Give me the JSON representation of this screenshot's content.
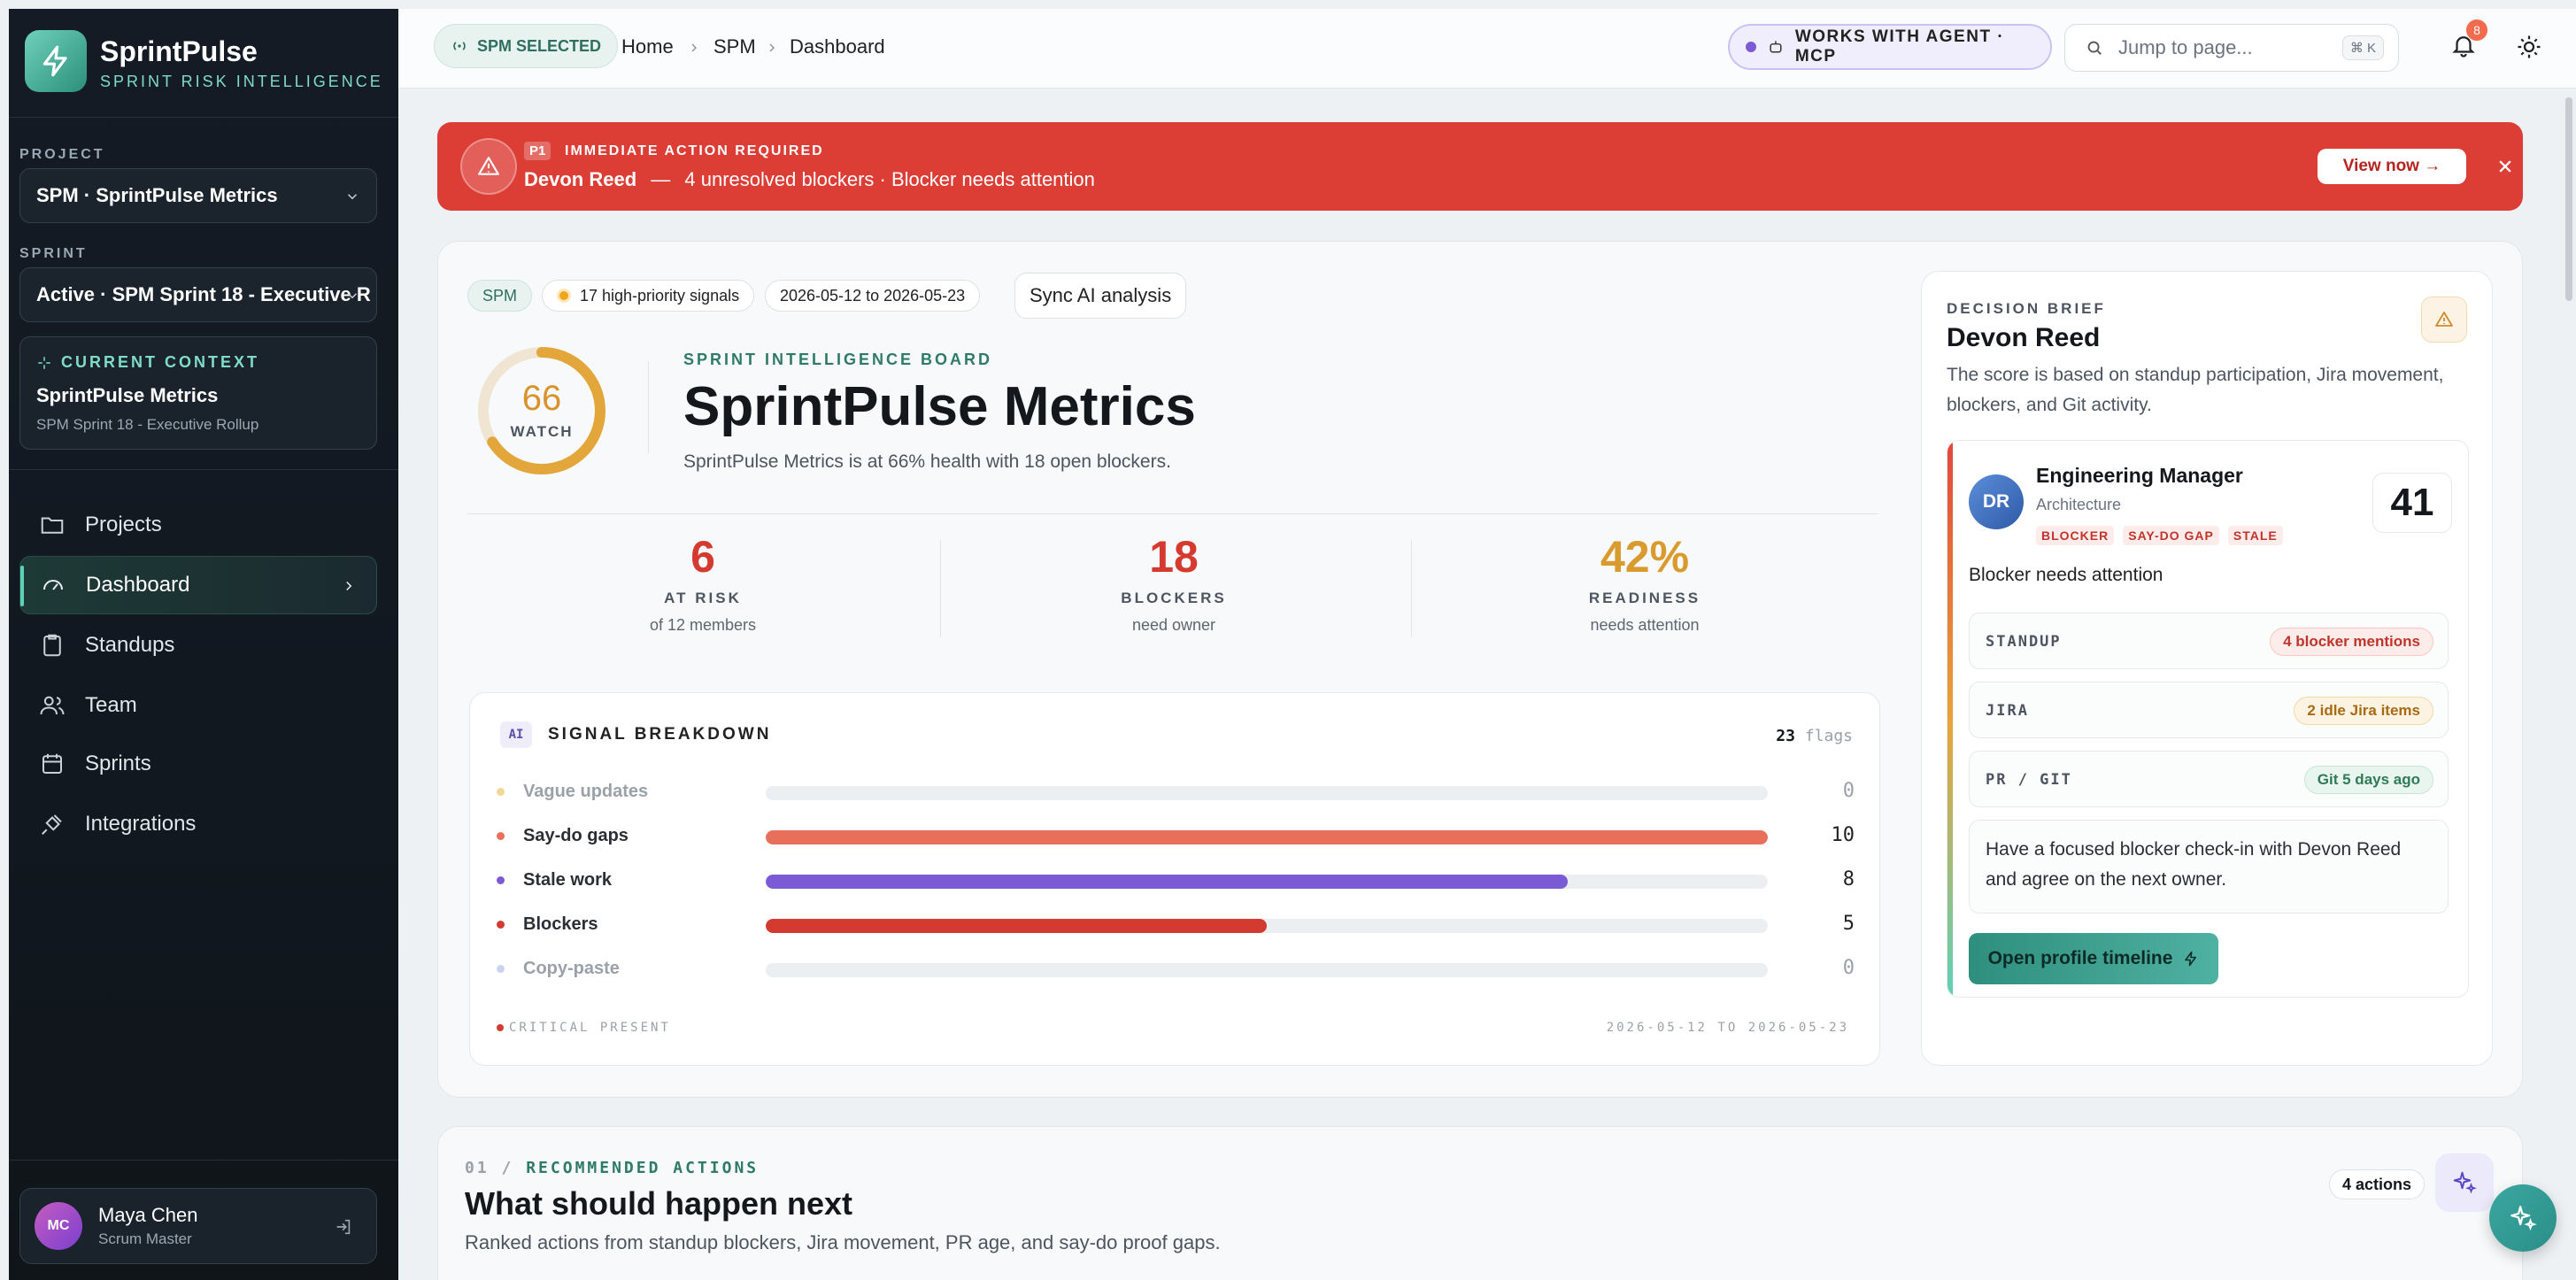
{
  "app": {
    "name": "SprintPulse",
    "tagline": "SPRINT RISK INTELLIGENCE"
  },
  "sidebar": {
    "project_label": "PROJECT",
    "project_value": "SPM · SprintPulse Metrics",
    "sprint_label": "SPRINT",
    "sprint_value": "Active · SPM Sprint 18 - Executive R",
    "context": {
      "label": "CURRENT CONTEXT",
      "title": "SprintPulse Metrics",
      "subtitle": "SPM Sprint 18 - Executive Rollup"
    },
    "nav": [
      {
        "label": "Projects",
        "icon": "folder-icon"
      },
      {
        "label": "Dashboard",
        "icon": "gauge-icon",
        "active": true
      },
      {
        "label": "Standups",
        "icon": "clipboard-icon"
      },
      {
        "label": "Team",
        "icon": "users-icon"
      },
      {
        "label": "Sprints",
        "icon": "calendar-icon"
      },
      {
        "label": "Integrations",
        "icon": "plug-icon"
      }
    ],
    "user": {
      "initials": "MC",
      "name": "Maya Chen",
      "role": "Scrum Master"
    }
  },
  "topbar": {
    "spm_pill": "SPM SELECTED",
    "breadcrumbs": [
      "Home",
      "SPM",
      "Dashboard"
    ],
    "agent_pill": "WORKS WITH AGENT · MCP",
    "search_placeholder": "Jump to page...",
    "search_shortcut": "⌘ K",
    "notifications_count": "8"
  },
  "alert": {
    "priority": "P1",
    "kicker": "IMMEDIATE ACTION REQUIRED",
    "person": "Devon Reed",
    "separator": "—",
    "message": "4 unresolved blockers · Blocker needs attention",
    "cta": "View now →"
  },
  "board": {
    "chips": {
      "project": "SPM",
      "signals": "17 high-priority signals",
      "dates": "2026-05-12 to 2026-05-23",
      "sync": "Sync AI analysis"
    },
    "score": {
      "value": "66",
      "label": "WATCH",
      "fraction": 0.66
    },
    "kicker": "SPRINT INTELLIGENCE BOARD",
    "title": "SprintPulse Metrics",
    "subtitle": "SprintPulse Metrics is at 66% health with 18 open blockers.",
    "stats": [
      {
        "value": "6",
        "label": "AT RISK",
        "sub": "of 12 members",
        "color": "#d43a2f"
      },
      {
        "value": "18",
        "label": "BLOCKERS",
        "sub": "need owner",
        "color": "#d43a2f"
      },
      {
        "value": "42%",
        "label": "READINESS",
        "sub": "needs attention",
        "color": "#d99a2e"
      }
    ]
  },
  "signals": {
    "ai_tag": "AI",
    "title": "SIGNAL BREAKDOWN",
    "flags_count": "23",
    "flags_label": "flags",
    "max": 10,
    "rows": [
      {
        "name": "Vague updates",
        "value": 0,
        "color": "#f2d79a",
        "muted": true
      },
      {
        "name": "Say-do gaps",
        "value": 10,
        "color": "#e8705a",
        "muted": false
      },
      {
        "name": "Stale work",
        "value": 8,
        "color": "#7b5ad6",
        "muted": false
      },
      {
        "name": "Blockers",
        "value": 5,
        "color": "#d33a30",
        "muted": false
      },
      {
        "name": "Copy-paste",
        "value": 0,
        "color": "#c9d4ee",
        "muted": true
      }
    ],
    "footer_left": "CRITICAL PRESENT",
    "footer_right": "2026-05-12 TO 2026-05-23"
  },
  "brief": {
    "kicker": "DECISION BRIEF",
    "name": "Devon Reed",
    "description": "The score is based on standup participation, Jira movement, blockers, and Git activity.",
    "person": {
      "initials": "DR",
      "role": "Engineering Manager",
      "team": "Architecture",
      "tags": [
        "BLOCKER",
        "SAY-DO GAP",
        "STALE"
      ],
      "score": "41",
      "status": "Blocker needs attention"
    },
    "evidence": [
      {
        "label": "STANDUP",
        "value": "4 blocker mentions",
        "color": "#c0342c",
        "bg": "#fdecea",
        "border": "#f5c9c4"
      },
      {
        "label": "JIRA",
        "value": "2 idle Jira items",
        "color": "#a86a12",
        "bg": "#fdf3e2",
        "border": "#f1d9a8"
      },
      {
        "label": "PR / GIT",
        "value": "Git 5 days ago",
        "color": "#2f7a57",
        "bg": "#e9f6ef",
        "border": "#c6e6d4"
      }
    ],
    "recommendation": "Have a focused blocker check-in with Devon Reed and agree on the next owner.",
    "cta": "Open profile timeline"
  },
  "recommended": {
    "num": "01",
    "kicker": "RECOMMENDED ACTIONS",
    "title": "What should happen next",
    "subtitle": "Ranked actions from standup blockers, Jira movement, PR age, and say-do proof gaps.",
    "count": "4 actions"
  }
}
